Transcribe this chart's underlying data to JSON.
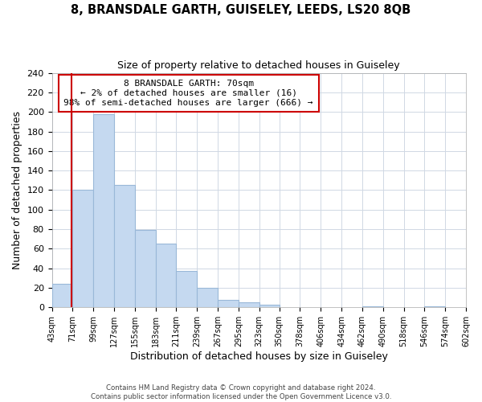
{
  "title": "8, BRANSDALE GARTH, GUISELEY, LEEDS, LS20 8QB",
  "subtitle": "Size of property relative to detached houses in Guiseley",
  "xlabel": "Distribution of detached houses by size in Guiseley",
  "ylabel": "Number of detached properties",
  "bar_edges": [
    43,
    71,
    99,
    127,
    155,
    183,
    211,
    239,
    267,
    295,
    323,
    350,
    378,
    406,
    434,
    462,
    490,
    518,
    546,
    574,
    602
  ],
  "bar_heights": [
    24,
    120,
    198,
    125,
    79,
    65,
    37,
    20,
    8,
    5,
    3,
    0,
    0,
    0,
    0,
    1,
    0,
    0,
    1,
    0
  ],
  "bar_color": "#c5d9f0",
  "bar_edge_color": "#9ab8d8",
  "property_line_x": 70,
  "property_line_color": "#cc0000",
  "annotation_title": "8 BRANSDALE GARTH: 70sqm",
  "annotation_line1": "← 2% of detached houses are smaller (16)",
  "annotation_line2": "98% of semi-detached houses are larger (666) →",
  "annotation_box_color": "#ffffff",
  "annotation_box_edge": "#cc0000",
  "ylim": [
    0,
    240
  ],
  "yticks": [
    0,
    20,
    40,
    60,
    80,
    100,
    120,
    140,
    160,
    180,
    200,
    220,
    240
  ],
  "tick_labels": [
    "43sqm",
    "71sqm",
    "99sqm",
    "127sqm",
    "155sqm",
    "183sqm",
    "211sqm",
    "239sqm",
    "267sqm",
    "295sqm",
    "323sqm",
    "350sqm",
    "378sqm",
    "406sqm",
    "434sqm",
    "462sqm",
    "490sqm",
    "518sqm",
    "546sqm",
    "574sqm",
    "602sqm"
  ],
  "footer_line1": "Contains HM Land Registry data © Crown copyright and database right 2024.",
  "footer_line2": "Contains public sector information licensed under the Open Government Licence v3.0.",
  "bg_color": "#ffffff",
  "grid_color": "#d0d8e4"
}
